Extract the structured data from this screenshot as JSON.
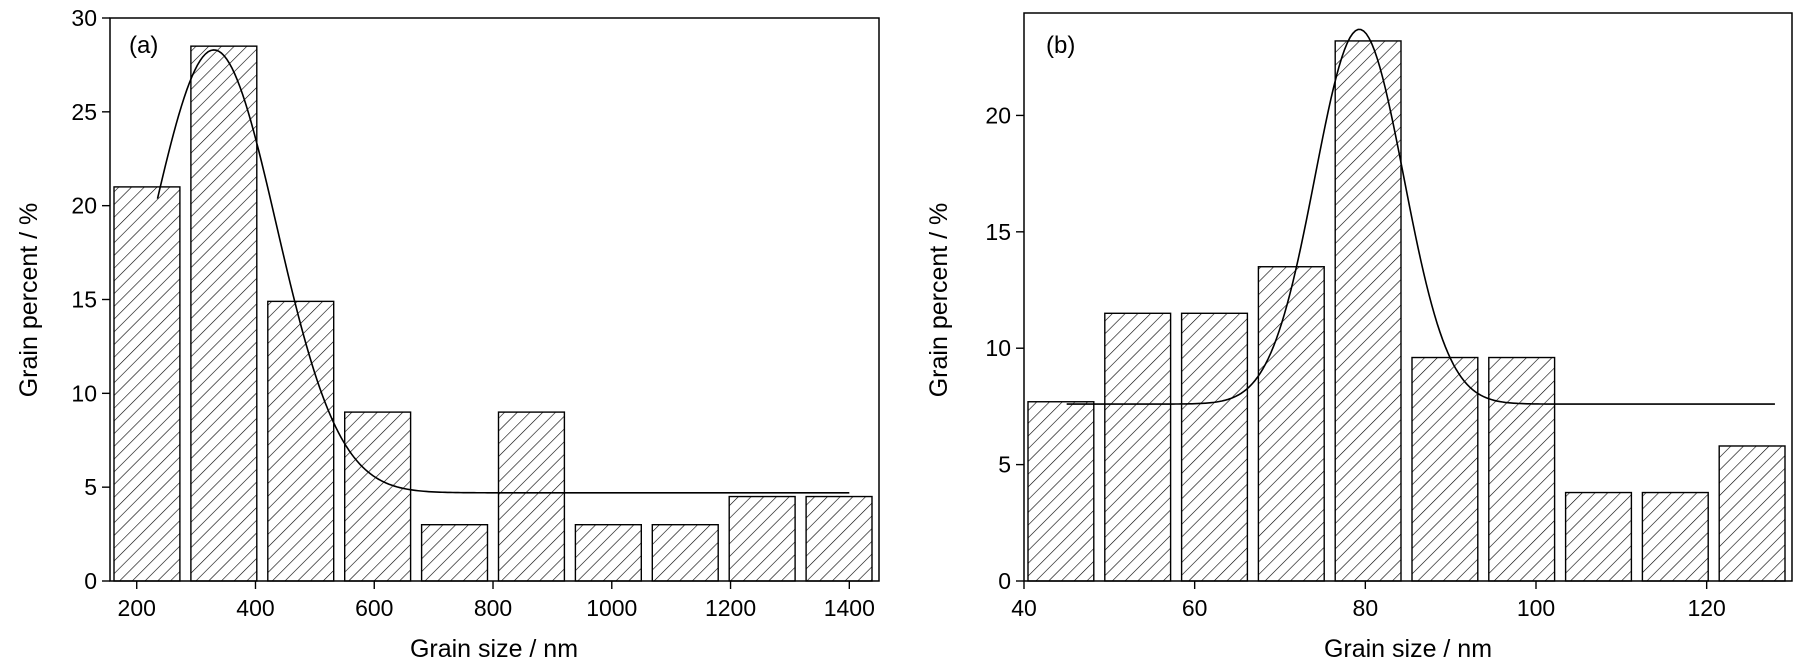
{
  "chart_data": [
    {
      "type": "bar",
      "panel_label": "(a)",
      "xlabel": "Grain size / nm",
      "ylabel": "Grain percent / %",
      "xlim": [
        155,
        1450
      ],
      "ylim": [
        0,
        30
      ],
      "xticks": [
        200,
        400,
        600,
        800,
        1000,
        1200,
        1400
      ],
      "yticks": [
        0,
        5,
        10,
        15,
        20,
        25,
        30
      ],
      "bars": [
        {
          "center": 210,
          "width": 160,
          "value": 21
        },
        {
          "center": 360,
          "width": 160,
          "value": 28.5
        },
        {
          "center": 460,
          "width": 160,
          "value": 14.9
        },
        {
          "center": 560,
          "width": 160,
          "value": 9
        },
        {
          "center": 760,
          "width": 160,
          "value": 3
        },
        {
          "center": 860,
          "width": 160,
          "value": 9
        },
        {
          "center": 1060,
          "width": 160,
          "value": 3
        },
        {
          "center": 1160,
          "width": 160,
          "value": 3
        },
        {
          "center": 1260,
          "width": 160,
          "value": 4.5
        },
        {
          "center": 1360,
          "width": 160,
          "value": 4.5
        }
      ],
      "fit": {
        "type": "gaussian",
        "baseline": 4.7,
        "amplitude": 23.6,
        "center": 330,
        "sigma": 105,
        "x_range": [
          235,
          1400
        ]
      },
      "grid": false,
      "bar_fill": "hatched",
      "color": "#000000"
    },
    {
      "type": "bar",
      "panel_label": "(b)",
      "xlabel": "Grain size / nm",
      "ylabel": "Grain percent / %",
      "xlim": [
        40,
        130
      ],
      "ylim": [
        0,
        24.4
      ],
      "xticks": [
        40,
        60,
        80,
        100,
        120
      ],
      "yticks": [
        0,
        5,
        10,
        15,
        20
      ],
      "bars": [
        {
          "center": 45,
          "width": 8,
          "value": 7.7
        },
        {
          "center": 55,
          "width": 8,
          "value": 11.5
        },
        {
          "center": 65,
          "width": 8,
          "value": 11.5
        },
        {
          "center": 75,
          "width": 8,
          "value": 13.5
        },
        {
          "center": 85,
          "width": 8,
          "value": 23.2
        },
        {
          "center": 95,
          "width": 8,
          "value": 9.6
        },
        {
          "center": 105,
          "width": 8,
          "value": 9.6
        },
        {
          "center": 115,
          "width": 8,
          "value": 3.8
        },
        {
          "center": 125,
          "width": 8,
          "value": 3.8
        },
        {
          "center": 135,
          "width": 8,
          "value": 5.8
        }
      ],
      "fit": {
        "type": "gaussian",
        "baseline": 7.6,
        "amplitude": 16.1,
        "center": 79.3,
        "sigma": 5.2,
        "x_range": [
          45,
          128
        ]
      },
      "grid": false,
      "bar_fill": "hatched",
      "color": "#000000"
    }
  ]
}
